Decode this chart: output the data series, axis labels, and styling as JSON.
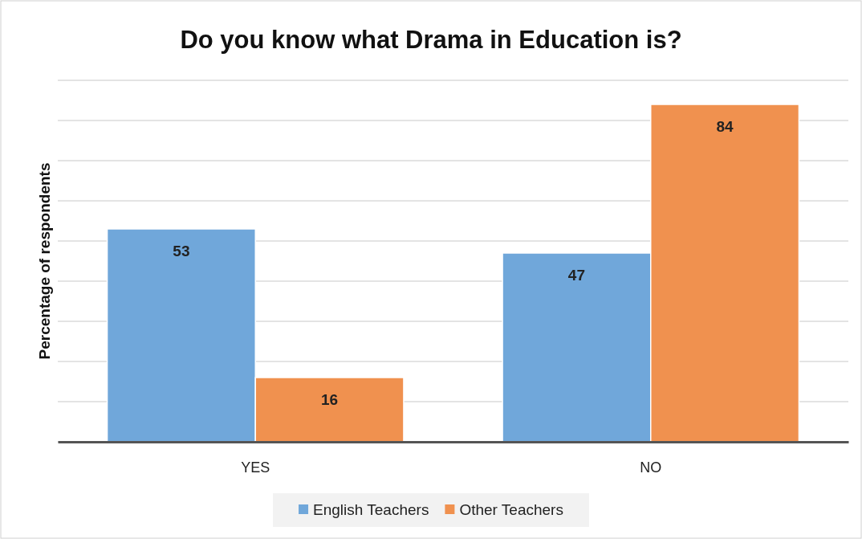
{
  "chart_data": {
    "type": "bar",
    "title": "Do you know what Drama in Education is?",
    "ylabel": "Percentage of respondents",
    "categories": [
      "YES",
      "NO"
    ],
    "series": [
      {
        "name": "English Teachers",
        "color": "#70a7da",
        "values": [
          53,
          47
        ]
      },
      {
        "name": "Other Teachers",
        "color": "#f0914f",
        "values": [
          16,
          84
        ]
      }
    ],
    "ylim": [
      0,
      90
    ],
    "yticks": [
      {
        "value": 0,
        "label": null
      },
      {
        "value": 10,
        "label": null
      },
      {
        "value": 20,
        "label": null
      },
      {
        "value": 30,
        "label": null
      },
      {
        "value": 40,
        "label": null
      },
      {
        "value": 50,
        "label": null
      },
      {
        "value": 60,
        "label": null
      },
      {
        "value": 70,
        "label": null
      },
      {
        "value": 80,
        "label": null
      },
      {
        "value": 90,
        "label": null
      }
    ],
    "tick_labels": "x",
    "grid": "y",
    "legend": "bottom",
    "data_labels": true
  }
}
